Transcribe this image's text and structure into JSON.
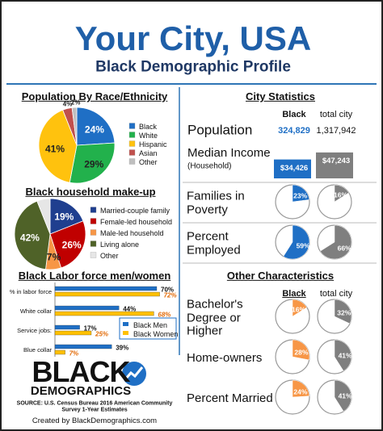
{
  "header": {
    "title": "Your City, USA",
    "subtitle": "Black Demographic Profile"
  },
  "chart_data": [
    {
      "type": "pie",
      "title": "Population By Race/Ethnicity",
      "categories": [
        "Black",
        "White",
        "Hispanic",
        "Asian",
        "Other"
      ],
      "values": [
        24,
        29,
        41,
        4,
        2
      ],
      "value_labels": [
        "24%",
        "29%",
        "41%",
        "4%",
        "2%"
      ],
      "colors": [
        "#1f6fc5",
        "#22b14c",
        "#ffc20e",
        "#c0504d",
        "#bfbfbf"
      ]
    },
    {
      "type": "pie",
      "title": "Black household make-up",
      "categories": [
        "Married-couple family",
        "Female-led household",
        "Male-led household",
        "Living alone",
        "Other"
      ],
      "values": [
        19,
        26,
        7,
        42,
        6
      ],
      "value_labels": [
        "19%",
        "26%",
        "7%",
        "42%",
        null
      ],
      "colors": [
        "#1f3f8f",
        "#c00000",
        "#f79646",
        "#4f6228",
        "#e6e6e6"
      ]
    },
    {
      "type": "hbar",
      "title": "Black Labor force men/women",
      "categories": [
        "% in labor force",
        "White collar",
        "Service jobs:",
        "Blue collar"
      ],
      "series": [
        {
          "name": "Black Men",
          "color": "#1f6fc5",
          "values": [
            70,
            44,
            17,
            39
          ],
          "value_labels": [
            "70%",
            "44%",
            "17%",
            "39%"
          ]
        },
        {
          "name": "Black Women",
          "color": "#ffc000",
          "values": [
            72,
            68,
            25,
            7
          ],
          "value_labels": [
            "72%",
            "68%",
            "25%",
            "7%"
          ]
        }
      ]
    },
    {
      "type": "column",
      "title": "Median Income",
      "subtitle": "(Household)",
      "values": [
        34426,
        47243
      ],
      "value_labels": [
        "$34,426",
        "$47,243"
      ],
      "colors": [
        "#1f6fc5",
        "#7f7f7f"
      ]
    },
    {
      "type": "gauge",
      "title": "Families in Poverty",
      "values": [
        23,
        16
      ],
      "value_labels": [
        "23%",
        "16%"
      ],
      "colors": [
        "#1f6fc5",
        "#7f7f7f"
      ]
    },
    {
      "type": "gauge",
      "title": "Percent Employed",
      "values": [
        59,
        66
      ],
      "value_labels": [
        "59%",
        "66%"
      ],
      "colors": [
        "#1f6fc5",
        "#7f7f7f"
      ]
    },
    {
      "type": "gauge",
      "title": "Bachelor's Degree or Higher",
      "values": [
        16,
        32
      ],
      "value_labels": [
        "16%",
        "32%"
      ],
      "colors": [
        "#f79646",
        "#7f7f7f"
      ]
    },
    {
      "type": "gauge",
      "title": "Home-owners",
      "values": [
        28,
        41
      ],
      "value_labels": [
        "28%",
        "41%"
      ],
      "colors": [
        "#f79646",
        "#7f7f7f"
      ]
    },
    {
      "type": "gauge",
      "title": "Percent Married",
      "values": [
        24,
        41
      ],
      "value_labels": [
        "24%",
        "41%"
      ],
      "colors": [
        "#f79646",
        "#7f7f7f"
      ]
    }
  ],
  "city_statistics": {
    "title": "City Statistics",
    "columns": [
      "Black",
      "total city"
    ],
    "population": {
      "label": "Population",
      "values": [
        "324,829",
        "1,317,942"
      ]
    }
  },
  "other_characteristics": {
    "title": "Other Characteristics",
    "columns": [
      "Black",
      "total city"
    ]
  },
  "footer": {
    "logo_top": "BLACK",
    "logo_bottom": "DEMOGRAPHICS",
    "source": "SOURCE: U.S. Census Bureau 2016 American Community Survey 1-Year Estimates",
    "credit": "Created by BlackDemographics.com"
  }
}
